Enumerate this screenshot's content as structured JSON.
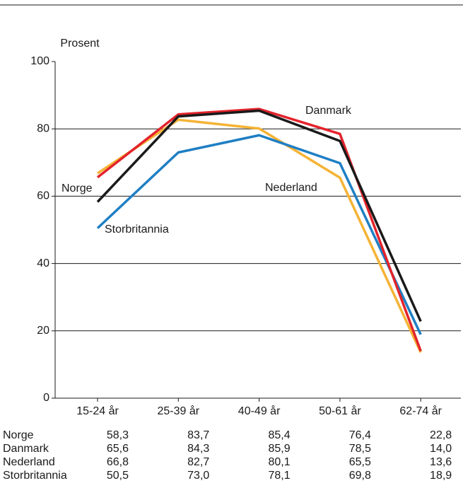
{
  "chart_data": {
    "type": "line",
    "y_label": "Prosent",
    "categories": [
      "15-24 år",
      "25-39 år",
      "40-49 år",
      "50-61 år",
      "62-74 år"
    ],
    "series": [
      {
        "name": "Norge",
        "color": "#1a1a1a",
        "values": [
          58.3,
          83.7,
          85.4,
          76.4,
          22.8
        ],
        "value_labels": [
          "58,3",
          "83,7",
          "85,4",
          "76,4",
          "22,8"
        ]
      },
      {
        "name": "Danmark",
        "color": "#e3232b",
        "values": [
          65.6,
          84.3,
          85.9,
          78.5,
          14.0
        ],
        "value_labels": [
          "65,6",
          "84,3",
          "85,9",
          "78,5",
          "14,0"
        ]
      },
      {
        "name": "Nederland",
        "color": "#f5b335",
        "values": [
          66.8,
          82.7,
          80.1,
          65.5,
          13.6
        ],
        "value_labels": [
          "66,8",
          "82,7",
          "80,1",
          "65,5",
          "13,6"
        ]
      },
      {
        "name": "Storbritannia",
        "color": "#1f7fc4",
        "values": [
          50.5,
          73.0,
          78.1,
          69.8,
          18.9
        ],
        "value_labels": [
          "50,5",
          "73,0",
          "78,1",
          "69,8",
          "18,9"
        ]
      }
    ],
    "ylim": [
      0,
      100
    ],
    "yticks": [
      0,
      20,
      40,
      60,
      80,
      100
    ],
    "grid": true
  }
}
